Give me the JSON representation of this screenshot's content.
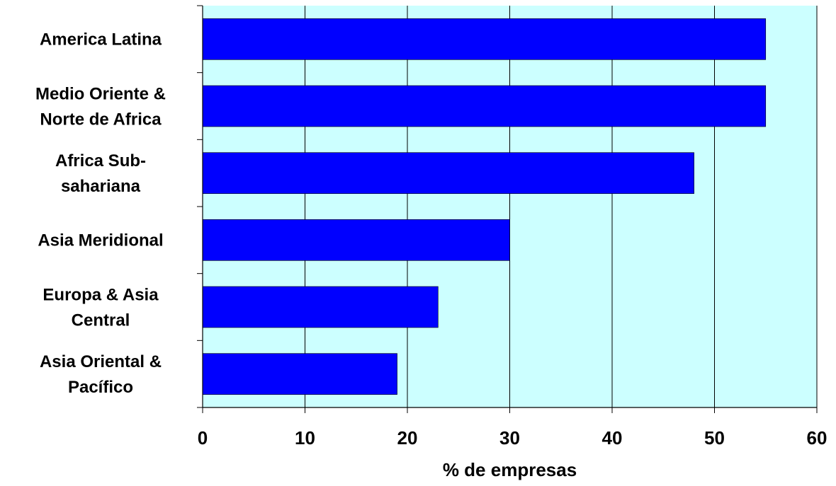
{
  "chart_data": {
    "type": "bar",
    "orientation": "horizontal",
    "categories": [
      [
        "America Latina"
      ],
      [
        "Medio Oriente &",
        "Norte de Africa"
      ],
      [
        "Africa Sub-",
        "sahariana"
      ],
      [
        "Asia Meridional"
      ],
      [
        "Europa & Asia",
        "Central"
      ],
      [
        "Asia Oriental &",
        "Pacífico"
      ]
    ],
    "values": [
      55,
      55,
      48,
      30,
      23,
      19
    ],
    "title": "",
    "xlabel": "% de empresas",
    "ylabel": "",
    "xlim": [
      0,
      60
    ],
    "xticks": [
      "0",
      "10",
      "20",
      "30",
      "40",
      "50",
      "60"
    ],
    "grid": "vertical",
    "legend": "none",
    "colors": {
      "bar": "#0000FF",
      "plot_background": "#CCFFFF",
      "gridline": "#000000",
      "axis": "#000000"
    }
  }
}
